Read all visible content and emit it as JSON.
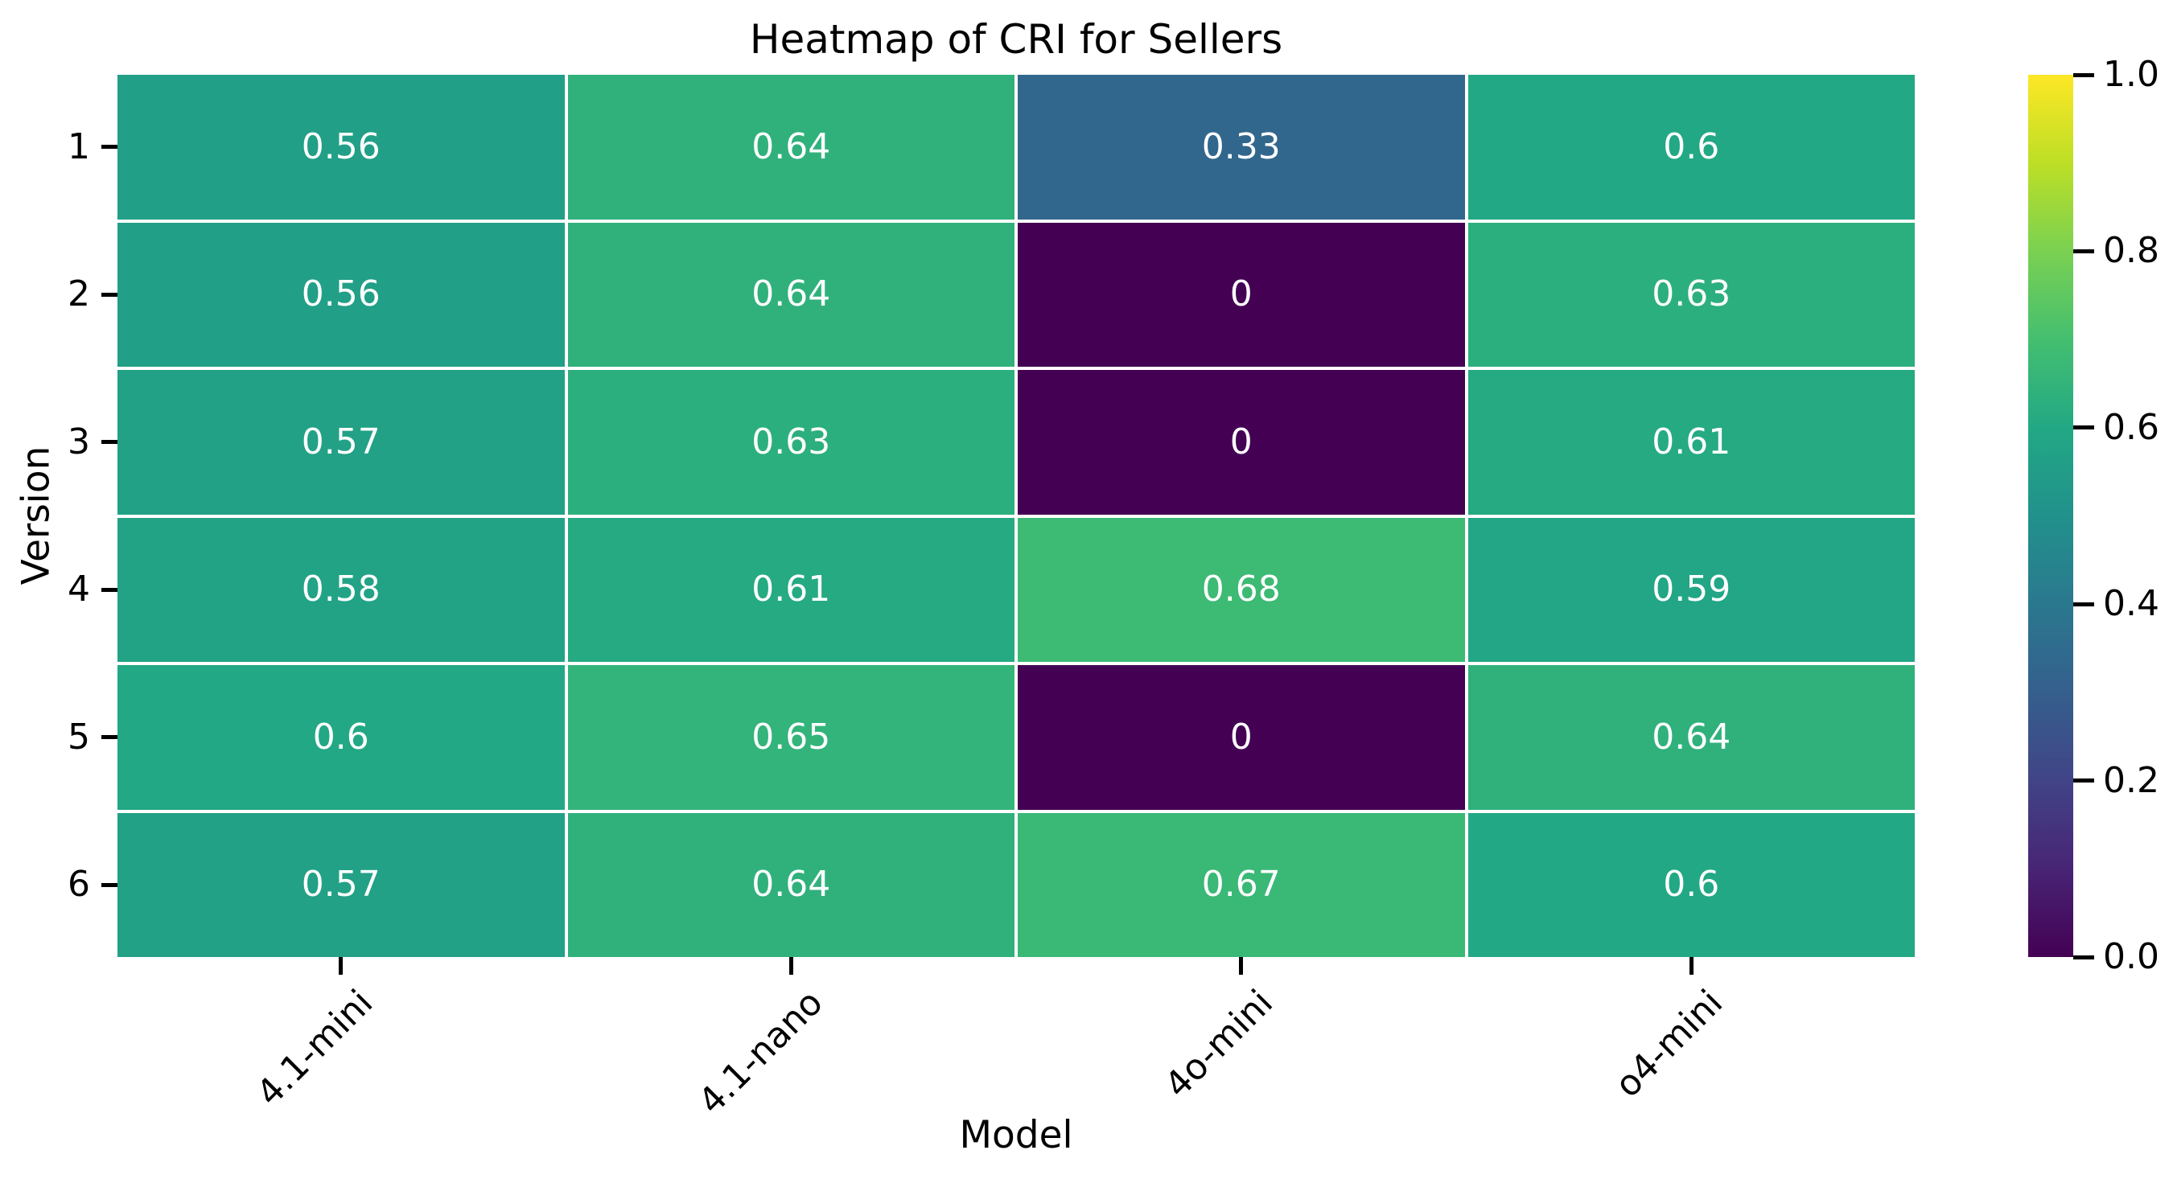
{
  "chart_data": {
    "type": "heatmap",
    "title": "Heatmap of CRI for Sellers",
    "xlabel": "Model",
    "ylabel": "Version",
    "x_categories": [
      "4.1-mini",
      "4.1-nano",
      "4o-mini",
      "o4-mini"
    ],
    "y_categories": [
      "1",
      "2",
      "3",
      "4",
      "5",
      "6"
    ],
    "values": [
      [
        0.56,
        0.64,
        0.33,
        0.6
      ],
      [
        0.56,
        0.64,
        0,
        0.63
      ],
      [
        0.57,
        0.63,
        0,
        0.61
      ],
      [
        0.58,
        0.61,
        0.68,
        0.59
      ],
      [
        0.6,
        0.65,
        0,
        0.64
      ],
      [
        0.57,
        0.64,
        0.67,
        0.6
      ]
    ],
    "vmin": 0,
    "vmax": 1,
    "colormap": "viridis",
    "colorbar_tick_labels": [
      "1.0",
      "0.8",
      "0.6",
      "0.4",
      "0.2",
      "0.0"
    ],
    "colorbar_tick_values": [
      1.0,
      0.8,
      0.6,
      0.4,
      0.2,
      0.0
    ],
    "annotation_color": "#ffffff",
    "background_color": "#ffffff",
    "cell_gap_color": "#ffffff",
    "viridis_stops": [
      "#440154",
      "#482475",
      "#414487",
      "#355f8d",
      "#2a788e",
      "#21918c",
      "#22a884",
      "#44bf70",
      "#7ad151",
      "#bddf26",
      "#fde725"
    ],
    "grid": false,
    "legend_position": "colorbar-right"
  }
}
